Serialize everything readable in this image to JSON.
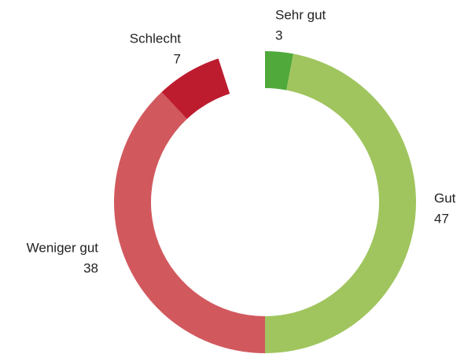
{
  "chart_data": {
    "type": "donut",
    "categories": [
      "Sehr gut",
      "Gut",
      "Weniger gut",
      "Schlecht"
    ],
    "values": [
      3,
      47,
      38,
      7
    ],
    "colors": [
      "#4fa93b",
      "#a0c55f",
      "#d1595e",
      "#bd1c2f"
    ]
  }
}
